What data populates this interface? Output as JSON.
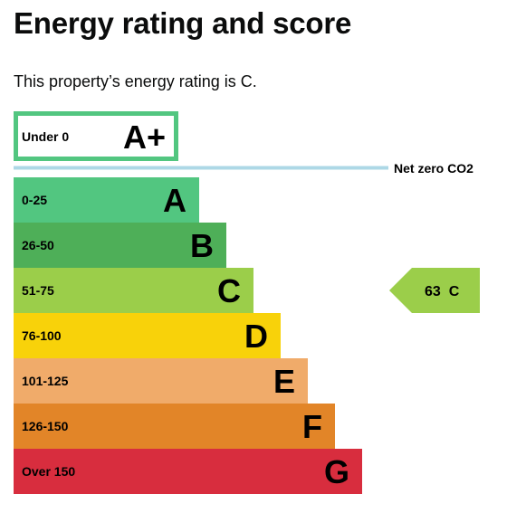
{
  "page": {
    "title": "Energy rating and score",
    "summary": "This property’s energy rating is C."
  },
  "chart_data": {
    "type": "bar",
    "title": "",
    "categories": [
      "A+",
      "A",
      "B",
      "C",
      "D",
      "E",
      "F",
      "G"
    ],
    "bands": [
      {
        "letter": "A+",
        "range": "Under 0",
        "color": "#52c680",
        "style": "outline"
      },
      {
        "letter": "A",
        "range": "0-25",
        "color": "#52c680"
      },
      {
        "letter": "B",
        "range": "26-50",
        "color": "#4eaf58"
      },
      {
        "letter": "C",
        "range": "51-75",
        "color": "#9bce4a"
      },
      {
        "letter": "D",
        "range": "76-100",
        "color": "#f8d20a"
      },
      {
        "letter": "E",
        "range": "101-125",
        "color": "#f0ab6a"
      },
      {
        "letter": "F",
        "range": "126-150",
        "color": "#e28528"
      },
      {
        "letter": "G",
        "range": "Over 150",
        "color": "#d82d3e"
      }
    ],
    "net_zero": {
      "label": "Net zero CO2",
      "color": "#add8e6"
    },
    "current": {
      "score": 63,
      "rating": "C",
      "color": "#9bce4a",
      "label": "63  C"
    }
  }
}
